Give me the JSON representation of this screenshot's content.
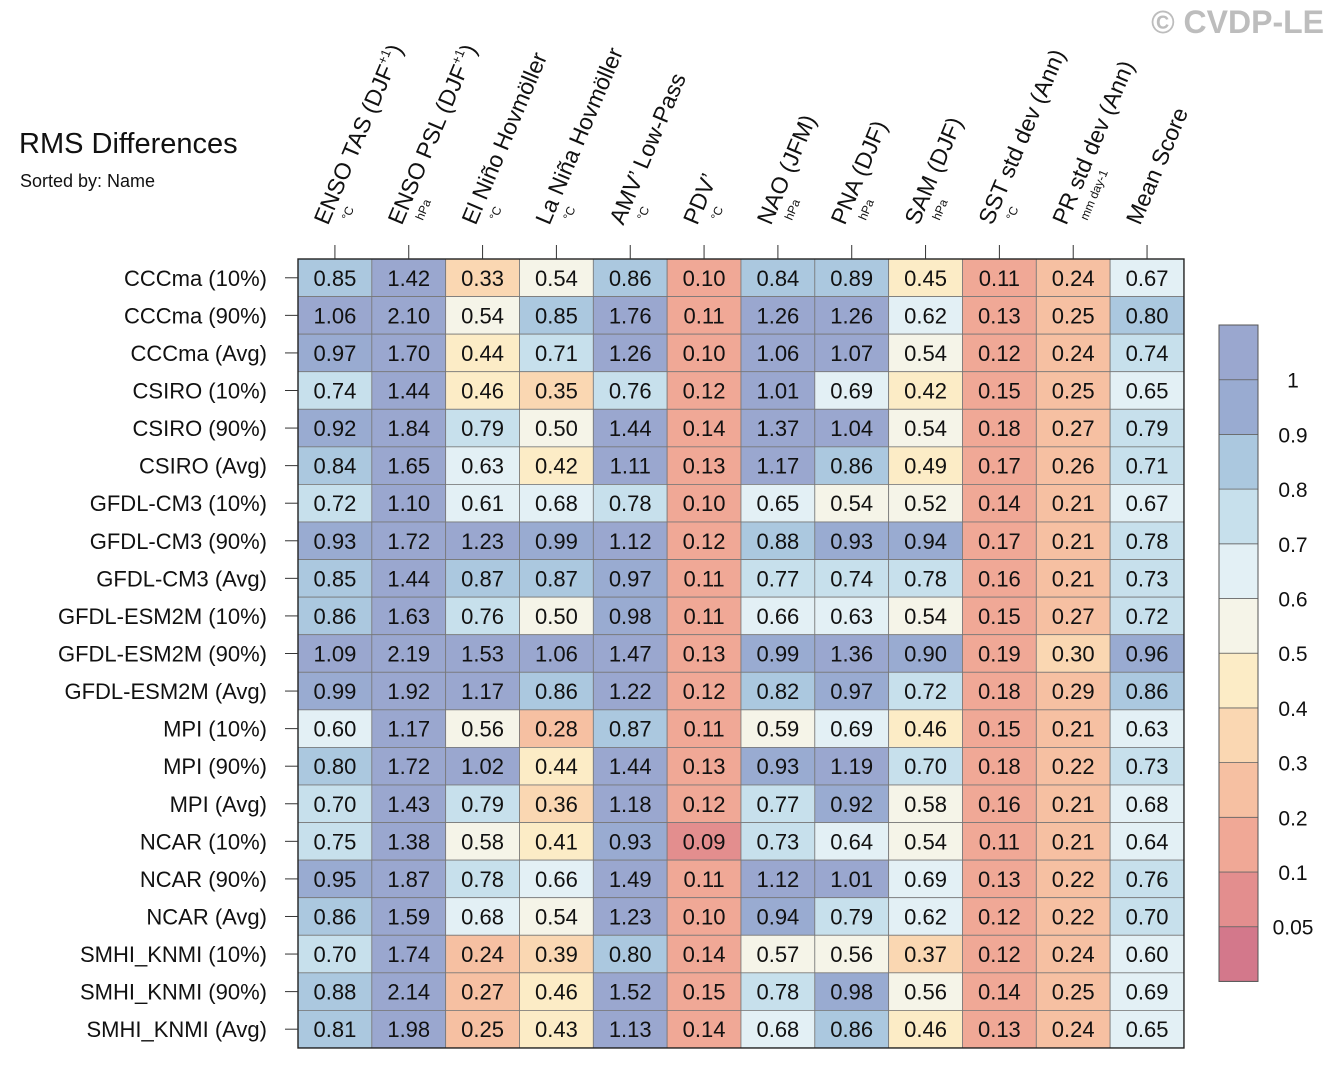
{
  "header": {
    "title": "RMS Differences",
    "subtitle": "Sorted by: Name",
    "copyright": "© CVDP-LE"
  },
  "chart_data": {
    "type": "heatmap",
    "columns": [
      {
        "label": "ENSO TAS (DJF+1)",
        "main": "ENSO TAS (DJF",
        "sup": "+1",
        "tail": ")",
        "unit": "°C"
      },
      {
        "label": "ENSO PSL (DJF+1)",
        "main": "ENSO PSL (DJF",
        "sup": "+1",
        "tail": ")",
        "unit": "hPa"
      },
      {
        "label": "El Niño Hovmöller",
        "main": "El Niño Hovmöller",
        "sup": "",
        "tail": "",
        "unit": "°C"
      },
      {
        "label": "La Niña Hovmöller",
        "main": "La Niña Hovmöller",
        "sup": "",
        "tail": "",
        "unit": "°C"
      },
      {
        "label": "AMV’ Low-Pass",
        "main": "AMV’ Low-Pass",
        "sup": "",
        "tail": "",
        "unit": "°C"
      },
      {
        "label": "PDV’",
        "main": "PDV’",
        "sup": "",
        "tail": "",
        "unit": "°C"
      },
      {
        "label": "NAO (JFM)",
        "main": "NAO (JFM)",
        "sup": "",
        "tail": "",
        "unit": "hPa"
      },
      {
        "label": "PNA (DJF)",
        "main": "PNA (DJF)",
        "sup": "",
        "tail": "",
        "unit": "hPa"
      },
      {
        "label": "SAM (DJF)",
        "main": "SAM (DJF)",
        "sup": "",
        "tail": "",
        "unit": "hPa"
      },
      {
        "label": "SST std dev (Ann)",
        "main": "SST std dev (Ann)",
        "sup": "",
        "tail": "",
        "unit": "°C"
      },
      {
        "label": "PR std dev (Ann)",
        "main": "PR std dev (Ann)",
        "sup": "",
        "tail": "",
        "unit": "mm day-1"
      },
      {
        "label": "Mean Score",
        "main": "Mean Score",
        "sup": "",
        "tail": "",
        "unit": ""
      }
    ],
    "rows": [
      "CCCma (10%)",
      "CCCma (90%)",
      "CCCma (Avg)",
      "CSIRO (10%)",
      "CSIRO (90%)",
      "CSIRO (Avg)",
      "GFDL-CM3 (10%)",
      "GFDL-CM3 (90%)",
      "GFDL-CM3 (Avg)",
      "GFDL-ESM2M (10%)",
      "GFDL-ESM2M (90%)",
      "GFDL-ESM2M (Avg)",
      "MPI (10%)",
      "MPI (90%)",
      "MPI (Avg)",
      "NCAR (10%)",
      "NCAR (90%)",
      "NCAR (Avg)",
      "SMHI_KNMI (10%)",
      "SMHI_KNMI (90%)",
      "SMHI_KNMI (Avg)"
    ],
    "values": [
      [
        "0.85",
        "1.42",
        "0.33",
        "0.54",
        "0.86",
        "0.10",
        "0.84",
        "0.89",
        "0.45",
        "0.11",
        "0.24",
        "0.67"
      ],
      [
        "1.06",
        "2.10",
        "0.54",
        "0.85",
        "1.76",
        "0.11",
        "1.26",
        "1.26",
        "0.62",
        "0.13",
        "0.25",
        "0.80"
      ],
      [
        "0.97",
        "1.70",
        "0.44",
        "0.71",
        "1.26",
        "0.10",
        "1.06",
        "1.07",
        "0.54",
        "0.12",
        "0.24",
        "0.74"
      ],
      [
        "0.74",
        "1.44",
        "0.46",
        "0.35",
        "0.76",
        "0.12",
        "1.01",
        "0.69",
        "0.42",
        "0.15",
        "0.25",
        "0.65"
      ],
      [
        "0.92",
        "1.84",
        "0.79",
        "0.50",
        "1.44",
        "0.14",
        "1.37",
        "1.04",
        "0.54",
        "0.18",
        "0.27",
        "0.79"
      ],
      [
        "0.84",
        "1.65",
        "0.63",
        "0.42",
        "1.11",
        "0.13",
        "1.17",
        "0.86",
        "0.49",
        "0.17",
        "0.26",
        "0.71"
      ],
      [
        "0.72",
        "1.10",
        "0.61",
        "0.68",
        "0.78",
        "0.10",
        "0.65",
        "0.54",
        "0.52",
        "0.14",
        "0.21",
        "0.67"
      ],
      [
        "0.93",
        "1.72",
        "1.23",
        "0.99",
        "1.12",
        "0.12",
        "0.88",
        "0.93",
        "0.94",
        "0.17",
        "0.21",
        "0.78"
      ],
      [
        "0.85",
        "1.44",
        "0.87",
        "0.87",
        "0.97",
        "0.11",
        "0.77",
        "0.74",
        "0.78",
        "0.16",
        "0.21",
        "0.73"
      ],
      [
        "0.86",
        "1.63",
        "0.76",
        "0.50",
        "0.98",
        "0.11",
        "0.66",
        "0.63",
        "0.54",
        "0.15",
        "0.27",
        "0.72"
      ],
      [
        "1.09",
        "2.19",
        "1.53",
        "1.06",
        "1.47",
        "0.13",
        "0.99",
        "1.36",
        "0.90",
        "0.19",
        "0.30",
        "0.96"
      ],
      [
        "0.99",
        "1.92",
        "1.17",
        "0.86",
        "1.22",
        "0.12",
        "0.82",
        "0.97",
        "0.72",
        "0.18",
        "0.29",
        "0.86"
      ],
      [
        "0.60",
        "1.17",
        "0.56",
        "0.28",
        "0.87",
        "0.11",
        "0.59",
        "0.69",
        "0.46",
        "0.15",
        "0.21",
        "0.63"
      ],
      [
        "0.80",
        "1.72",
        "1.02",
        "0.44",
        "1.44",
        "0.13",
        "0.93",
        "1.19",
        "0.70",
        "0.18",
        "0.22",
        "0.73"
      ],
      [
        "0.70",
        "1.43",
        "0.79",
        "0.36",
        "1.18",
        "0.12",
        "0.77",
        "0.92",
        "0.58",
        "0.16",
        "0.21",
        "0.68"
      ],
      [
        "0.75",
        "1.38",
        "0.58",
        "0.41",
        "0.93",
        "0.09",
        "0.73",
        "0.64",
        "0.54",
        "0.11",
        "0.21",
        "0.64"
      ],
      [
        "0.95",
        "1.87",
        "0.78",
        "0.66",
        "1.49",
        "0.11",
        "1.12",
        "1.01",
        "0.69",
        "0.13",
        "0.22",
        "0.76"
      ],
      [
        "0.86",
        "1.59",
        "0.68",
        "0.54",
        "1.23",
        "0.10",
        "0.94",
        "0.79",
        "0.62",
        "0.12",
        "0.22",
        "0.70"
      ],
      [
        "0.70",
        "1.74",
        "0.24",
        "0.39",
        "0.80",
        "0.14",
        "0.57",
        "0.56",
        "0.37",
        "0.12",
        "0.24",
        "0.60"
      ],
      [
        "0.88",
        "2.14",
        "0.27",
        "0.46",
        "1.52",
        "0.15",
        "0.78",
        "0.98",
        "0.56",
        "0.14",
        "0.25",
        "0.69"
      ],
      [
        "0.81",
        "1.98",
        "0.25",
        "0.43",
        "1.13",
        "0.14",
        "0.68",
        "0.86",
        "0.46",
        "0.13",
        "0.24",
        "0.65"
      ]
    ],
    "colorbar": {
      "levels": [
        0.05,
        0.1,
        0.2,
        0.3,
        0.4,
        0.5,
        0.6,
        0.7,
        0.8,
        0.9,
        1
      ],
      "labels": [
        "0.05",
        "0.1",
        "0.2",
        "0.3",
        "0.4",
        "0.5",
        "0.6",
        "0.7",
        "0.8",
        "0.9",
        "1"
      ],
      "colors": [
        "#d3788b",
        "#e38e8e",
        "#f0a896",
        "#f6c0a2",
        "#fad7b2",
        "#fcecc6",
        "#f5f4e8",
        "#e3f0f5",
        "#c7e0ec",
        "#abc8df",
        "#99abd1",
        "#9aa7cf"
      ]
    }
  }
}
